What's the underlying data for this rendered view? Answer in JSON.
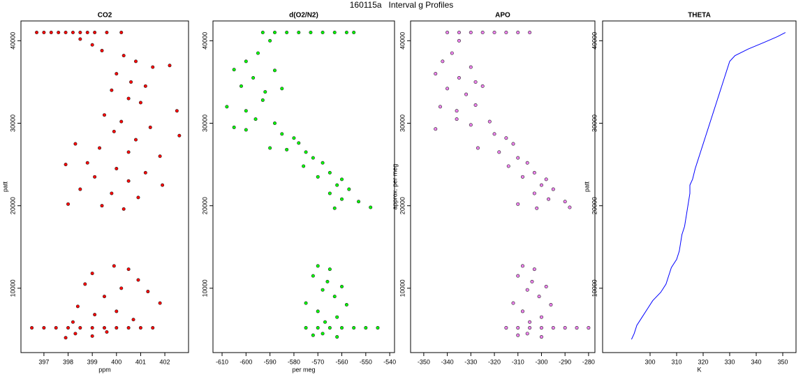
{
  "title": "160115a   Interval g Profiles",
  "chart_data": [
    {
      "type": "scatter",
      "title": "CO2",
      "xlabel": "ppm",
      "ylabel": "patt",
      "color": "#ff0000",
      "xlim": [
        396.05,
        402.98
      ],
      "ylim": [
        2200,
        42400
      ],
      "xticks": [
        397,
        398,
        399,
        400,
        401,
        402
      ],
      "yticks": [
        10000,
        20000,
        30000,
        40000
      ],
      "x": [
        396.7,
        397.0,
        397.3,
        397.6,
        397.9,
        398.2,
        398.5,
        398.8,
        399.1,
        399.6,
        400.2,
        398.5,
        399.0,
        399.4,
        400.3,
        400.8,
        401.5,
        402.2,
        400.0,
        400.6,
        401.2,
        399.8,
        400.5,
        401.0,
        402.5,
        399.5,
        400.2,
        401.4,
        399.9,
        400.8,
        402.6,
        398.3,
        399.3,
        400.5,
        401.8,
        398.8,
        397.9,
        400.0,
        401.2,
        399.1,
        400.5,
        401.9,
        398.5,
        399.8,
        400.9,
        398.0,
        399.4,
        400.3,
        399.9,
        400.5,
        399.0,
        400.9,
        398.7,
        400.2,
        401.3,
        399.5,
        401.8,
        398.4,
        400.0,
        399.1,
        400.7,
        398.2,
        396.5,
        397.0,
        397.5,
        398.0,
        398.5,
        399.0,
        399.5,
        400.0,
        400.5,
        401.0,
        401.5,
        398.3,
        399.0,
        397.9,
        399.6
      ],
      "values": [
        41000,
        41000,
        41000,
        41000,
        41000,
        41000,
        41000,
        41000,
        41000,
        41000,
        41000,
        40200,
        39500,
        38800,
        38200,
        37500,
        36800,
        37000,
        36000,
        35000,
        34500,
        34000,
        33000,
        32500,
        31500,
        31000,
        30200,
        29500,
        29000,
        28000,
        28500,
        27500,
        27000,
        26500,
        26000,
        25200,
        25000,
        24500,
        24000,
        23500,
        23000,
        22500,
        22000,
        21500,
        21000,
        20200,
        20000,
        19600,
        12700,
        12300,
        11800,
        11000,
        10500,
        10000,
        9600,
        9000,
        8200,
        7800,
        7200,
        6800,
        6200,
        5900,
        5200,
        5200,
        5200,
        5200,
        5200,
        5200,
        5200,
        5200,
        5200,
        5200,
        5200,
        4500,
        4200,
        4000,
        4700
      ]
    },
    {
      "type": "scatter",
      "title": "d(O2/N2)",
      "xlabel": "per meg",
      "color": "#00ff00",
      "xlim": [
        -613.8,
        -538
      ],
      "ylim": [
        2200,
        42400
      ],
      "xticks": [
        -610,
        -600,
        -590,
        -580,
        -570,
        -560,
        -550,
        -540
      ],
      "yticks": [
        10000,
        20000,
        30000,
        40000
      ],
      "x": [
        -593,
        -588,
        -583,
        -578,
        -573,
        -568,
        -563,
        -558,
        -555,
        -590,
        -595,
        -600,
        -605,
        -597,
        -588,
        -602,
        -592,
        -585,
        -608,
        -600,
        -593,
        -605,
        -596,
        -588,
        -600,
        -585,
        -580,
        -578,
        -590,
        -575,
        -583,
        -572,
        -568,
        -576,
        -565,
        -560,
        -570,
        -562,
        -557,
        -565,
        -560,
        -553,
        -563,
        -548,
        -570,
        -565,
        -572,
        -566,
        -560,
        -568,
        -563,
        -575,
        -558,
        -570,
        -562,
        -567,
        -575,
        -570,
        -565,
        -560,
        -555,
        -550,
        -545,
        -568,
        -562,
        -572
      ],
      "values": [
        41000,
        41000,
        41000,
        41000,
        41000,
        41000,
        41000,
        41000,
        41000,
        40000,
        38500,
        37500,
        36500,
        35500,
        36400,
        34500,
        33800,
        34200,
        32000,
        31500,
        32800,
        29500,
        30500,
        30000,
        29200,
        28700,
        28200,
        27600,
        27000,
        26500,
        26800,
        25800,
        25200,
        24800,
        24000,
        23200,
        23500,
        22500,
        22000,
        21500,
        20800,
        20500,
        19700,
        19800,
        12700,
        12300,
        11500,
        10800,
        10200,
        9800,
        9000,
        8200,
        8000,
        7200,
        6500,
        5900,
        5200,
        5200,
        5200,
        5200,
        5200,
        5200,
        5200,
        4500,
        4100,
        4300
      ]
    },
    {
      "type": "scatter",
      "title": "APO",
      "ylabel": "approx. per meg",
      "color": "#ee82ee",
      "xlim": [
        -355.6,
        -277.3
      ],
      "ylim": [
        2200,
        42400
      ],
      "xticks": [
        -350,
        -340,
        -330,
        -320,
        -310,
        -300,
        -290,
        -280
      ],
      "yticks": [
        10000,
        20000,
        30000,
        40000
      ],
      "x": [
        -340,
        -335,
        -330,
        -325,
        -320,
        -315,
        -310,
        -305,
        -335,
        -338,
        -342,
        -330,
        -345,
        -335,
        -328,
        -340,
        -325,
        -332,
        -343,
        -336,
        -328,
        -345,
        -336,
        -330,
        -322,
        -320,
        -315,
        -327,
        -312,
        -318,
        -310,
        -306,
        -314,
        -303,
        -298,
        -308,
        -300,
        -295,
        -303,
        -297,
        -290,
        -302,
        -288,
        -310,
        -308,
        -303,
        -310,
        -304,
        -298,
        -306,
        -301,
        -312,
        -296,
        -308,
        -300,
        -305,
        -315,
        -310,
        -305,
        -300,
        -295,
        -290,
        -285,
        -280,
        -306,
        -300,
        -310
      ],
      "values": [
        41000,
        41000,
        41000,
        41000,
        41000,
        41000,
        41000,
        41000,
        40000,
        38500,
        37500,
        36800,
        36000,
        35500,
        35000,
        34200,
        34500,
        33500,
        32000,
        31500,
        32200,
        29300,
        30500,
        29800,
        30200,
        28700,
        28200,
        27000,
        27500,
        26500,
        25800,
        25200,
        24800,
        24000,
        23200,
        23500,
        22500,
        22000,
        21500,
        20800,
        20500,
        19700,
        19800,
        20200,
        12700,
        12300,
        11500,
        10800,
        10200,
        9800,
        9000,
        8200,
        8000,
        7200,
        6500,
        5900,
        5200,
        5200,
        5200,
        5200,
        5200,
        5200,
        5200,
        5200,
        4500,
        4100,
        4300
      ]
    },
    {
      "type": "line",
      "title": "THETA",
      "xlabel": "K",
      "ylabel": "patt",
      "color": "#0000ff",
      "xlim": [
        282.1,
        355
      ],
      "ylim": [
        2200,
        42400
      ],
      "xticks": [
        300,
        310,
        320,
        330,
        340,
        350
      ],
      "yticks": [
        10000,
        20000,
        30000,
        40000
      ],
      "x": [
        293,
        294,
        295,
        297,
        299,
        301,
        304,
        306,
        307,
        308,
        310,
        311,
        311.5,
        312,
        313,
        313.5,
        314,
        314.5,
        315,
        315,
        316,
        317,
        318,
        319,
        320,
        321,
        322,
        323,
        324,
        325,
        326,
        327,
        328,
        329,
        330,
        332,
        337,
        343,
        348,
        351
      ],
      "values": [
        3800,
        4500,
        5500,
        6500,
        7500,
        8500,
        9500,
        10500,
        11500,
        12500,
        13500,
        14500,
        15500,
        16500,
        17500,
        18500,
        19500,
        20500,
        21500,
        22500,
        23200,
        24500,
        25500,
        26500,
        27500,
        28500,
        29500,
        30500,
        31500,
        32500,
        33500,
        34500,
        35500,
        36500,
        37500,
        38200,
        39000,
        39800,
        40500,
        41000
      ]
    }
  ]
}
